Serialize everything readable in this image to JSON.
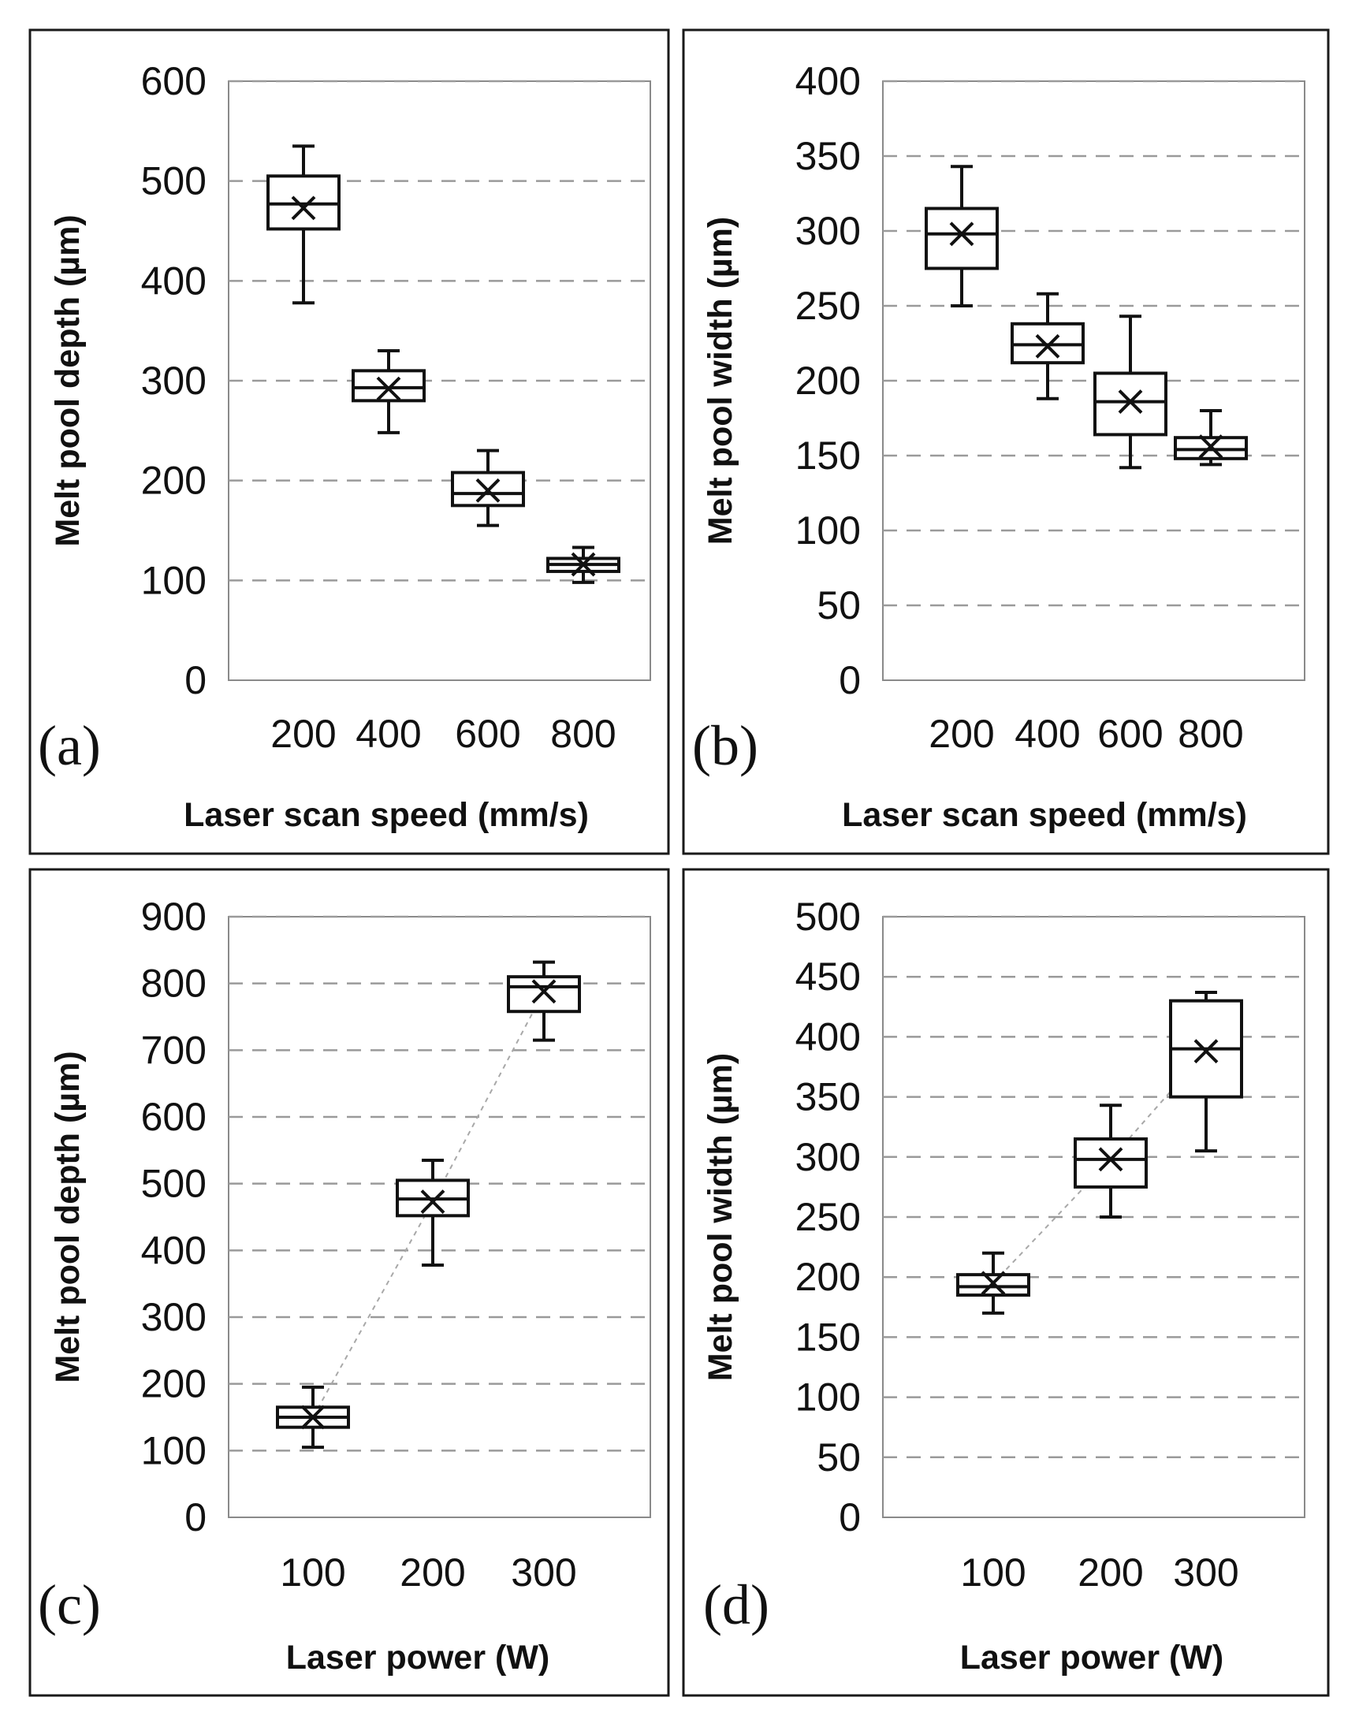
{
  "chart_data": [
    {
      "type": "box",
      "panel_label": "(a)",
      "xlabel": "Laser scan speed (mm/s)",
      "ylabel": "Melt pool depth (µm)",
      "categories": [
        "200",
        "400",
        "600",
        "800"
      ],
      "ylim": [
        0,
        600
      ],
      "yticks": [
        "0",
        "100",
        "200",
        "300",
        "400",
        "500",
        "600"
      ],
      "grid": true,
      "trend_line": false,
      "boxes": [
        {
          "category": "200",
          "min": 378,
          "q1": 452,
          "median": 477,
          "q3": 505,
          "max": 535,
          "mean": 473
        },
        {
          "category": "400",
          "min": 248,
          "q1": 280,
          "median": 293,
          "q3": 310,
          "max": 330,
          "mean": 292
        },
        {
          "category": "600",
          "min": 155,
          "q1": 175,
          "median": 187,
          "q3": 208,
          "max": 230,
          "mean": 190
        },
        {
          "category": "800",
          "min": 98,
          "q1": 109,
          "median": 116,
          "q3": 122,
          "max": 133,
          "mean": 116
        }
      ]
    },
    {
      "type": "box",
      "panel_label": "(b)",
      "xlabel": "Laser scan speed (mm/s)",
      "ylabel": "Melt pool width (µm)",
      "categories": [
        "200",
        "400",
        "600",
        "800"
      ],
      "ylim": [
        0,
        400
      ],
      "yticks": [
        "0",
        "50",
        "100",
        "150",
        "200",
        "250",
        "300",
        "350",
        "400"
      ],
      "grid": true,
      "trend_line": false,
      "boxes": [
        {
          "category": "200",
          "min": 250,
          "q1": 275,
          "median": 298,
          "q3": 315,
          "max": 343,
          "mean": 298
        },
        {
          "category": "400",
          "min": 188,
          "q1": 212,
          "median": 224,
          "q3": 238,
          "max": 258,
          "mean": 223
        },
        {
          "category": "600",
          "min": 142,
          "q1": 164,
          "median": 186,
          "q3": 205,
          "max": 243,
          "mean": 186
        },
        {
          "category": "800",
          "min": 144,
          "q1": 148,
          "median": 154,
          "q3": 162,
          "max": 180,
          "mean": 156
        }
      ]
    },
    {
      "type": "box",
      "panel_label": "(c)",
      "xlabel": "Laser power (W)",
      "ylabel": "Melt pool depth (µm)",
      "categories": [
        "100",
        "200",
        "300"
      ],
      "ylim": [
        0,
        900
      ],
      "yticks": [
        "0",
        "100",
        "200",
        "300",
        "400",
        "500",
        "600",
        "700",
        "800",
        "900"
      ],
      "grid": true,
      "trend_line": true,
      "boxes": [
        {
          "category": "100",
          "min": 105,
          "q1": 135,
          "median": 150,
          "q3": 165,
          "max": 195,
          "mean": 150
        },
        {
          "category": "200",
          "min": 378,
          "q1": 452,
          "median": 477,
          "q3": 505,
          "max": 535,
          "mean": 473
        },
        {
          "category": "300",
          "min": 715,
          "q1": 758,
          "median": 795,
          "q3": 810,
          "max": 832,
          "mean": 788
        }
      ]
    },
    {
      "type": "box",
      "panel_label": "(d)",
      "xlabel": "Laser power (W)",
      "ylabel": "Melt pool width (µm)",
      "categories": [
        "100",
        "200",
        "300"
      ],
      "ylim": [
        0,
        500
      ],
      "yticks": [
        "0",
        "50",
        "100",
        "150",
        "200",
        "250",
        "300",
        "350",
        "400",
        "450",
        "500"
      ],
      "grid": true,
      "trend_line": true,
      "boxes": [
        {
          "category": "100",
          "min": 170,
          "q1": 185,
          "median": 192,
          "q3": 202,
          "max": 220,
          "mean": 195
        },
        {
          "category": "200",
          "min": 250,
          "q1": 275,
          "median": 298,
          "q3": 315,
          "max": 343,
          "mean": 298
        },
        {
          "category": "300",
          "min": 305,
          "q1": 350,
          "median": 390,
          "q3": 430,
          "max": 437,
          "mean": 388
        }
      ]
    }
  ]
}
